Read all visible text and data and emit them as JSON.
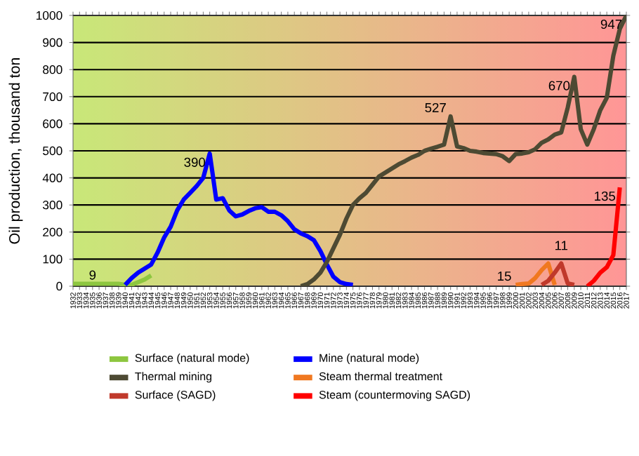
{
  "chart_data": {
    "type": "line",
    "ylabel": "Oil production, thousand ton",
    "xlim": [
      1932,
      2017
    ],
    "xticks": [
      1932,
      1933,
      1934,
      1935,
      1936,
      1937,
      1938,
      1939,
      1940,
      1941,
      1942,
      1943,
      1944,
      1945,
      1946,
      1947,
      1948,
      1949,
      1950,
      1951,
      1952,
      1953,
      1954,
      1955,
      1956,
      1957,
      1958,
      1959,
      1960,
      1961,
      1962,
      1963,
      1964,
      1965,
      1966,
      1967,
      1968,
      1969,
      1970,
      1971,
      1972,
      1973,
      1974,
      1975,
      1976,
      1977,
      1978,
      1979,
      1980,
      1981,
      1982,
      1983,
      1984,
      1985,
      1986,
      1987,
      1988,
      1989,
      1990,
      1991,
      1992,
      1993,
      1994,
      1995,
      1996,
      1997,
      1998,
      1999,
      2000,
      2001,
      2002,
      2003,
      2004,
      2005,
      2006,
      2007,
      2008,
      2009,
      2010,
      2011,
      2012,
      2013,
      2014,
      2015,
      2016,
      2017
    ],
    "ylim": [
      0,
      1000
    ],
    "yticks": [
      0,
      100,
      200,
      300,
      400,
      500,
      600,
      700,
      800,
      900,
      1000
    ],
    "grid": "y",
    "legend": "bottom",
    "marker": "none",
    "line_style": "solid",
    "series": [
      {
        "name": "Surface (natural mode)",
        "color": "#8dc63f",
        "x": [
          1932,
          1933,
          1934,
          1935,
          1936,
          1937,
          1938,
          1939,
          1940,
          1941,
          1942,
          1943,
          1944
        ],
        "values": [
          9,
          9,
          9,
          9,
          9,
          9,
          9,
          9,
          5,
          5,
          15,
          25,
          40
        ]
      },
      {
        "name": "Mine (natural mode)",
        "color": "#0000ff",
        "x": [
          1940,
          1941,
          1942,
          1943,
          1944,
          1945,
          1946,
          1947,
          1948,
          1949,
          1950,
          1951,
          1952,
          1953,
          1954,
          1955,
          1956,
          1957,
          1958,
          1959,
          1960,
          1961,
          1962,
          1963,
          1964,
          1965,
          1966,
          1967,
          1968,
          1969,
          1970,
          1971,
          1972,
          1973,
          1974,
          1975
        ],
        "values": [
          5,
          30,
          50,
          65,
          80,
          125,
          180,
          220,
          280,
          320,
          345,
          370,
          400,
          490,
          320,
          325,
          280,
          258,
          265,
          278,
          288,
          292,
          275,
          275,
          262,
          240,
          210,
          195,
          185,
          170,
          130,
          80,
          35,
          15,
          8,
          5
        ]
      },
      {
        "name": "Thermal mining",
        "color": "#4d4a33",
        "x": [
          1967,
          1968,
          1969,
          1970,
          1971,
          1972,
          1973,
          1974,
          1975,
          1976,
          1977,
          1978,
          1979,
          1980,
          1981,
          1982,
          1983,
          1984,
          1985,
          1986,
          1987,
          1988,
          1989,
          1990,
          1991,
          1992,
          1993,
          1994,
          1995,
          1996,
          1997,
          1998,
          1999,
          2000,
          2001,
          2002,
          2003,
          2004,
          2005,
          2006,
          2007,
          2008,
          2009,
          2010,
          2011,
          2012,
          2013,
          2014,
          2015,
          2016,
          2017
        ],
        "values": [
          0,
          8,
          25,
          50,
          90,
          140,
          190,
          250,
          300,
          325,
          345,
          375,
          405,
          420,
          435,
          450,
          462,
          475,
          485,
          500,
          508,
          515,
          523,
          627,
          516,
          510,
          500,
          497,
          492,
          490,
          488,
          480,
          462,
          488,
          490,
          495,
          506,
          530,
          542,
          560,
          568,
          660,
          773,
          580,
          523,
          580,
          650,
          696,
          851,
          950,
          1000
        ]
      },
      {
        "name": "Steam thermal treatment",
        "color": "#f07820",
        "x": [
          2000,
          2001,
          2002,
          2003,
          2004,
          2005,
          2006
        ],
        "values": [
          5,
          8,
          10,
          30,
          60,
          84,
          5
        ]
      },
      {
        "name": "Surface (SAGD)",
        "color": "#c0392b",
        "x": [
          2004,
          2005,
          2006,
          2007,
          2008,
          2009
        ],
        "values": [
          5,
          20,
          50,
          84,
          10,
          5
        ]
      },
      {
        "name": "Steam (countermoving SAGD)",
        "color": "#ff0000",
        "x": [
          2011,
          2012,
          2013,
          2014,
          2015,
          2016
        ],
        "values": [
          0,
          20,
          50,
          70,
          115,
          365
        ]
      }
    ],
    "annotations": [
      {
        "text": "9",
        "x": 1935,
        "y": 9
      },
      {
        "text": "390",
        "x": 1953,
        "y": 490
      },
      {
        "text": "527",
        "x": 1990,
        "y": 627
      },
      {
        "text": "670",
        "x": 2009,
        "y": 773
      },
      {
        "text": "947",
        "x": 2017,
        "y": 1000
      },
      {
        "text": "15",
        "x": 2000,
        "y": 5
      },
      {
        "text": "11",
        "x": 2007,
        "y": 84
      },
      {
        "text": "135",
        "x": 2016,
        "y": 365
      }
    ]
  }
}
